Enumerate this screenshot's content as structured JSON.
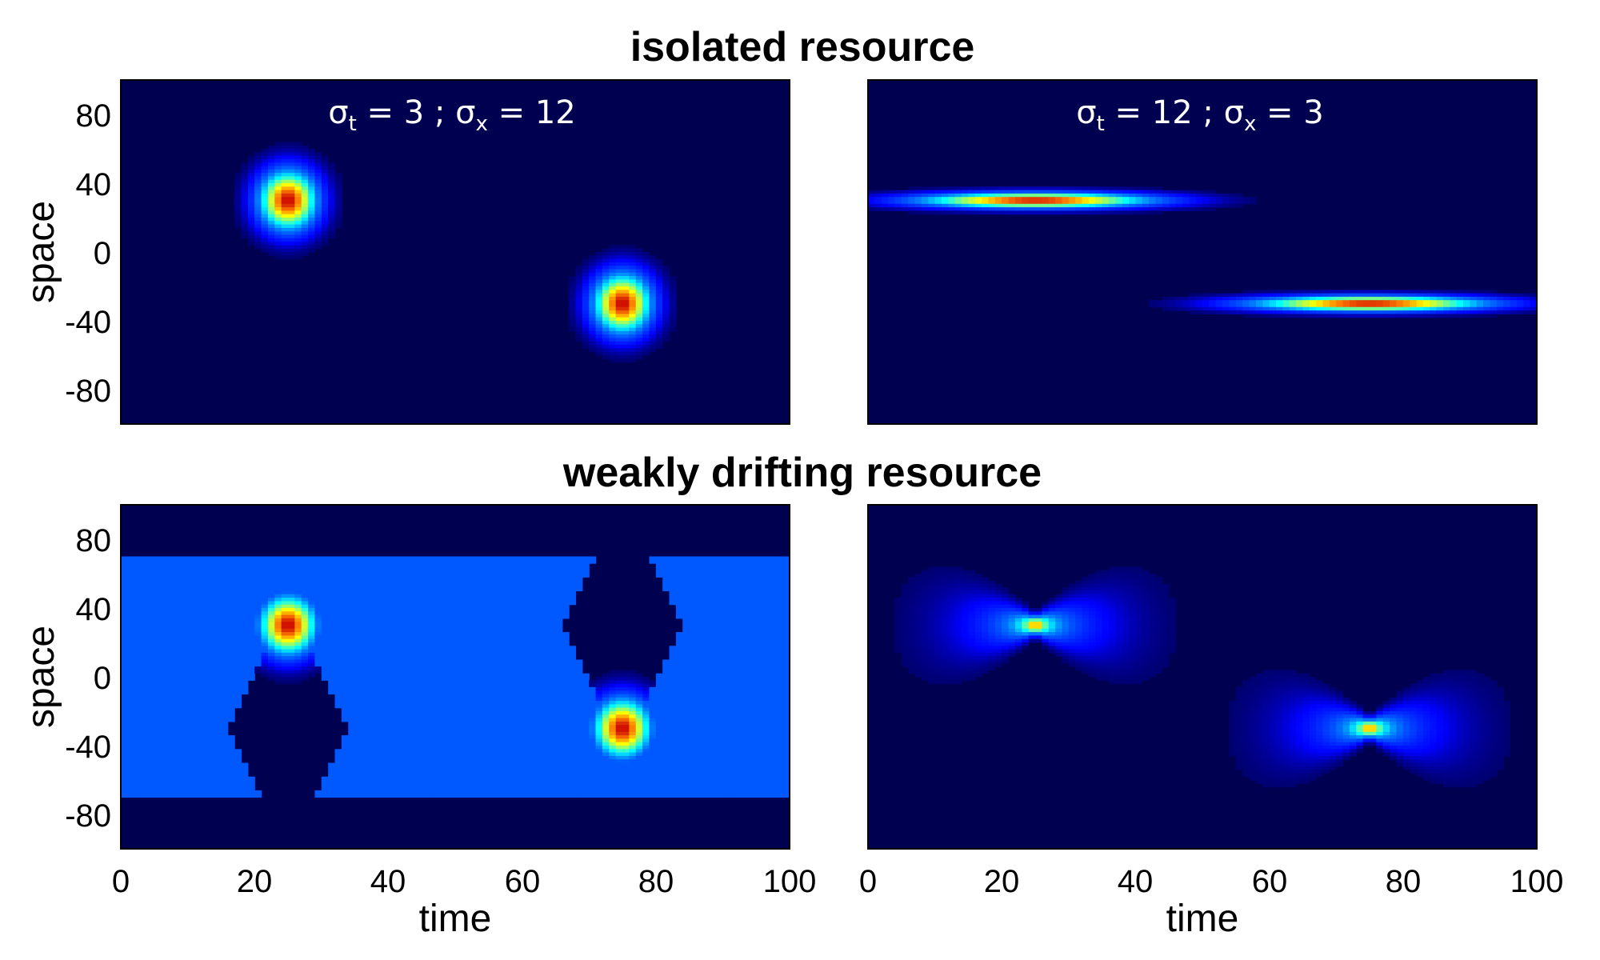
{
  "titles": {
    "row1": "isolated resource",
    "row2": "weakly drifting resource"
  },
  "chart_data": [
    {
      "type": "heatmap",
      "title": "isolated resource",
      "annotation": {
        "s1": "σ",
        "sub1": "t",
        "mid": " = 3 ; ",
        "s2": "σ",
        "sub2": "x",
        "end": " = 12"
      },
      "sigma_t": 3,
      "sigma_x": 12,
      "peaks": [
        {
          "t": 25,
          "x": 30
        },
        {
          "t": 75,
          "x": -30
        }
      ],
      "xlabel": "",
      "ylabel": "space",
      "xlim": [
        0,
        100
      ],
      "ylim": [
        -100,
        100
      ],
      "yticks": [
        "80",
        "40",
        "0",
        "-40",
        "-80"
      ],
      "yticks_shown": true,
      "xticks_shown": false,
      "colormap": "jet",
      "background": "#000050"
    },
    {
      "type": "heatmap",
      "title": "isolated resource",
      "annotation": {
        "s1": "σ",
        "sub1": "t",
        "mid": " = 12 ; ",
        "s2": "σ",
        "sub2": "x",
        "end": " = 3"
      },
      "sigma_t": 12,
      "sigma_x": 3,
      "peaks": [
        {
          "t": 25,
          "x": 30
        },
        {
          "t": 75,
          "x": -30
        }
      ],
      "xlabel": "",
      "ylabel": "",
      "xlim": [
        0,
        100
      ],
      "ylim": [
        -100,
        100
      ],
      "yticks_shown": false,
      "xticks_shown": false,
      "colormap": "jet",
      "background": "#000050"
    },
    {
      "type": "heatmap",
      "title": "weakly drifting resource",
      "sigma_t": 3,
      "sigma_x": 12,
      "peaks": [
        {
          "t": 25,
          "x": 30
        },
        {
          "t": 75,
          "x": -30
        }
      ],
      "band": {
        "x_min": -70,
        "x_max": 70,
        "level": 0.27
      },
      "xlabel": "time",
      "ylabel": "space",
      "xlim": [
        0,
        100
      ],
      "ylim": [
        -100,
        100
      ],
      "xticks": [
        "0",
        "20",
        "40",
        "60",
        "80",
        "100"
      ],
      "yticks": [
        "80",
        "40",
        "0",
        "-40",
        "-80"
      ],
      "yticks_shown": true,
      "xticks_shown": true,
      "colormap": "jet",
      "background": "#000050"
    },
    {
      "type": "heatmap",
      "title": "weakly drifting resource",
      "sigma_t": 12,
      "sigma_x": 3,
      "peaks": [
        {
          "t": 25,
          "x": 30
        },
        {
          "t": 75,
          "x": -30
        }
      ],
      "xlabel": "time",
      "ylabel": "",
      "xlim": [
        0,
        100
      ],
      "ylim": [
        -100,
        100
      ],
      "xticks": [
        "0",
        "20",
        "40",
        "60",
        "80",
        "100"
      ],
      "yticks_shown": false,
      "xticks_shown": true,
      "colormap": "jet",
      "background": "#000050"
    }
  ]
}
